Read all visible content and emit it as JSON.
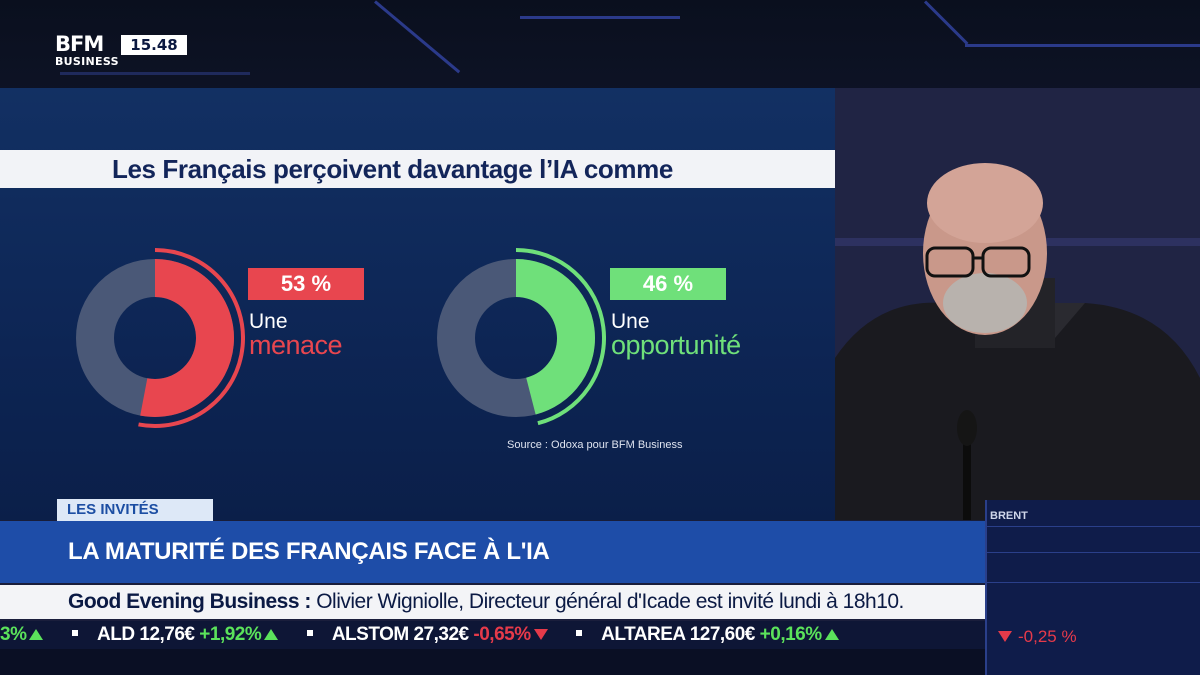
{
  "branding": {
    "logo_top": "BFM",
    "logo_bottom": "BUSINESS",
    "clock": "15.48"
  },
  "graphic": {
    "title": "Les Français perçoivent davantage l’IA comme",
    "left": {
      "percent_label": "53 %",
      "percent": 53,
      "label_small": "Une",
      "label_big": "menace",
      "color": "#e8464f"
    },
    "right": {
      "percent_label": "46 %",
      "percent": 46,
      "label_small": "Une",
      "label_big": "opportunité",
      "color": "#6fe07a"
    },
    "source": "Source : Odoxa pour BFM Business",
    "base_color": "#4a5877"
  },
  "lower_third": {
    "tag": "LES INVITÉS",
    "headline": "LA MATURITÉ DES FRANÇAIS FACE À L'IA",
    "ticker_show": "Good Evening Business :",
    "ticker_message": "Olivier Wigniolle, Directeur général d'Icade est invité lundi à 18h10."
  },
  "stocks": [
    {
      "name": "",
      "value": "",
      "change": "3%",
      "dir": "up"
    },
    {
      "name": "ALD",
      "value": "12,76€",
      "change": "+1,92%",
      "dir": "up"
    },
    {
      "name": "ALSTOM",
      "value": "27,32€",
      "change": "-0,65%",
      "dir": "down"
    },
    {
      "name": "ALTAREA",
      "value": "127,60€",
      "change": "+0,16%",
      "dir": "up"
    }
  ],
  "side": {
    "label": "BRENT",
    "value": "-0,25 %"
  }
}
